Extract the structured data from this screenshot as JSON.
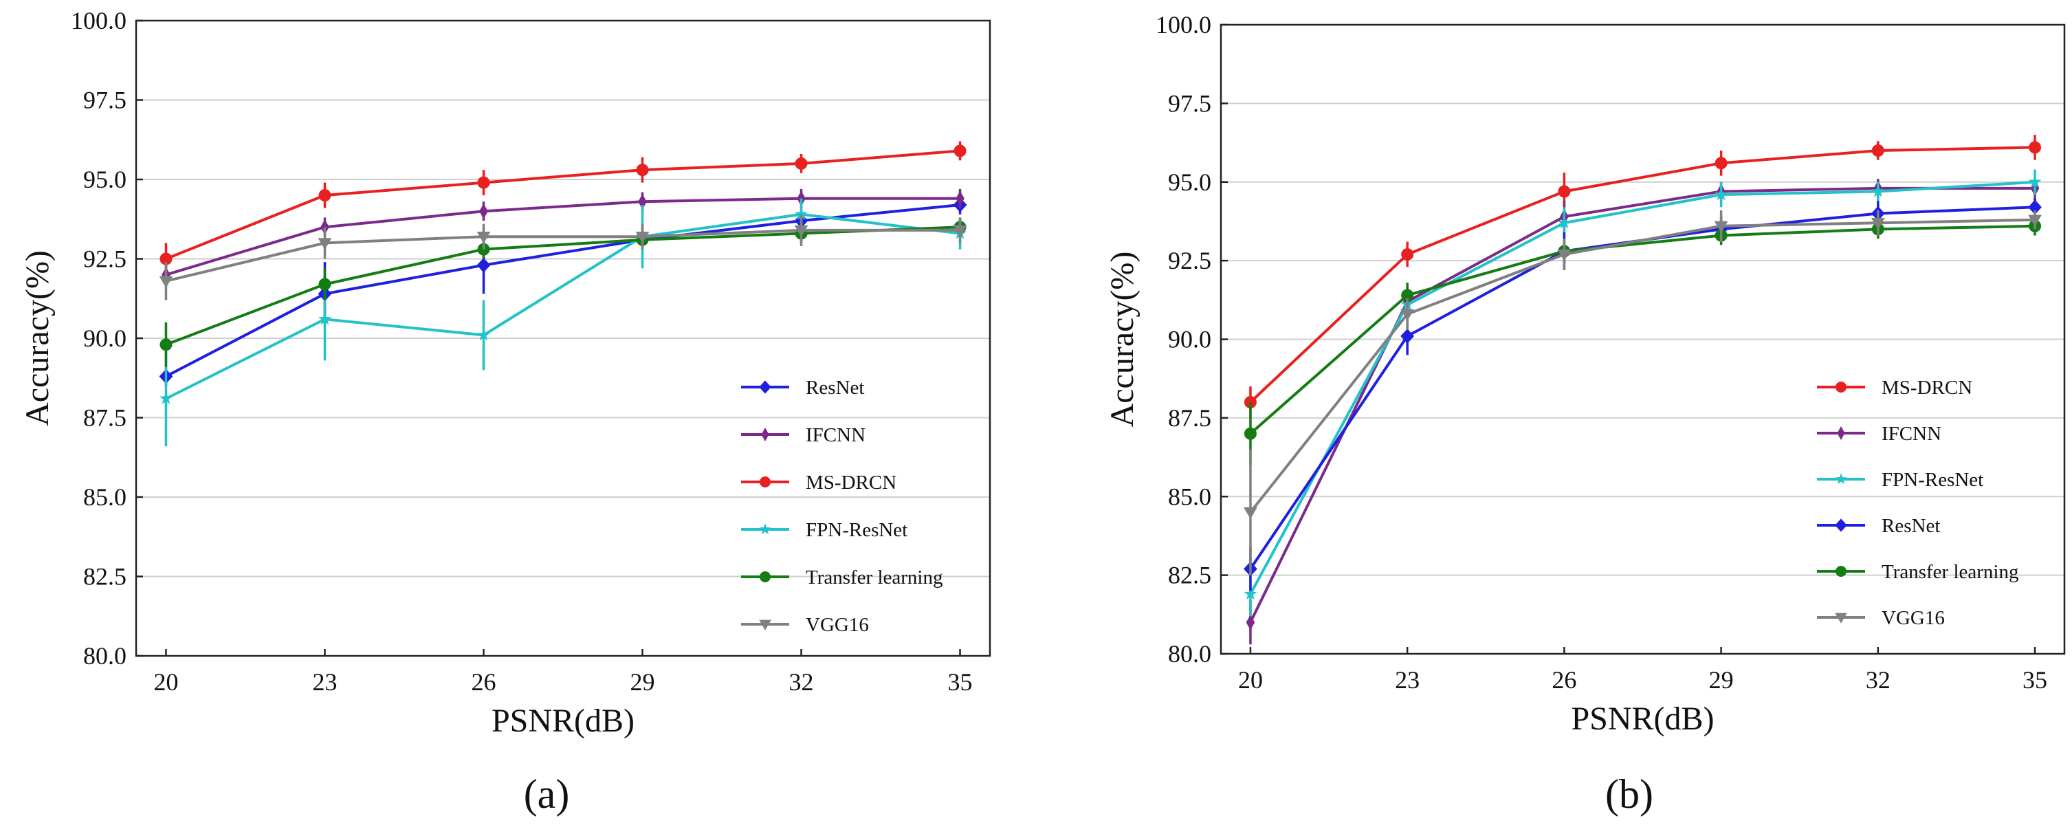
{
  "chart_data": [
    {
      "type": "line",
      "panel_label": "(a)",
      "xlabel": "PSNR(dB)",
      "ylabel": "Accuracy(%)",
      "x": [
        20,
        23,
        26,
        29,
        32,
        35
      ],
      "x_ticks": [
        "20",
        "23",
        "26",
        "29",
        "32",
        "35"
      ],
      "ylim": [
        80.0,
        100.0
      ],
      "y_ticks": [
        "80.0",
        "82.5",
        "85.0",
        "87.5",
        "90.0",
        "92.5",
        "95.0",
        "97.5",
        "100.0"
      ],
      "grid": "horizontal",
      "legend_position": "lower-right",
      "series": [
        {
          "name": "ResNet",
          "color": "#1f1fe0",
          "marker": "diamond",
          "values": [
            88.8,
            91.4,
            92.3,
            93.1,
            93.7,
            94.2
          ],
          "errors": [
            0.3,
            1.0,
            0.9,
            0.3,
            0.3,
            0.3
          ]
        },
        {
          "name": "IFCNN",
          "color": "#7b2a8c",
          "marker": "thin-diamond",
          "values": [
            92.0,
            93.5,
            94.0,
            94.3,
            94.4,
            94.4
          ],
          "errors": [
            0.3,
            0.3,
            0.3,
            0.3,
            0.3,
            0.3
          ]
        },
        {
          "name": "MS-DRCN",
          "color": "#e8201f",
          "marker": "circle",
          "values": [
            92.5,
            94.5,
            94.9,
            95.3,
            95.5,
            95.9
          ],
          "errors": [
            0.5,
            0.4,
            0.4,
            0.4,
            0.3,
            0.3
          ]
        },
        {
          "name": "FPN-ResNet",
          "color": "#22c2c8",
          "marker": "star",
          "values": [
            88.1,
            90.6,
            90.1,
            93.2,
            93.9,
            93.3
          ],
          "errors": [
            1.5,
            1.3,
            1.1,
            1.0,
            0.5,
            0.5
          ]
        },
        {
          "name": "Transfer learning",
          "color": "#137c13",
          "marker": "circle",
          "values": [
            89.8,
            91.7,
            92.8,
            93.1,
            93.3,
            93.5
          ],
          "errors": [
            0.7,
            0.5,
            0.3,
            0.2,
            0.3,
            0.3
          ]
        },
        {
          "name": "VGG16",
          "color": "#808080",
          "marker": "triangle-down",
          "values": [
            91.8,
            93.0,
            93.2,
            93.2,
            93.4,
            93.4
          ],
          "errors": [
            0.6,
            0.5,
            0.4,
            0.4,
            0.5,
            0.4
          ]
        }
      ]
    },
    {
      "type": "line",
      "panel_label": "(b)",
      "xlabel": "PSNR(dB)",
      "ylabel": "Accuracy(%)",
      "x": [
        20,
        23,
        26,
        29,
        32,
        35
      ],
      "x_ticks": [
        "20",
        "23",
        "26",
        "29",
        "32",
        "35"
      ],
      "ylim": [
        80.0,
        100.0
      ],
      "y_ticks": [
        "80.0",
        "82.5",
        "85.0",
        "87.5",
        "90.0",
        "92.5",
        "95.0",
        "97.5",
        "100.0"
      ],
      "grid": "horizontal",
      "legend_position": "lower-right",
      "series": [
        {
          "name": "MS-DRCN",
          "color": "#e8201f",
          "marker": "circle",
          "values": [
            88.0,
            92.7,
            94.7,
            95.6,
            96.0,
            96.1
          ],
          "errors": [
            0.5,
            0.4,
            0.6,
            0.4,
            0.3,
            0.4
          ]
        },
        {
          "name": "IFCNN",
          "color": "#7b2a8c",
          "marker": "thin-diamond",
          "values": [
            81.0,
            91.2,
            93.9,
            94.7,
            94.8,
            94.8
          ],
          "errors": [
            0.7,
            0.5,
            0.5,
            0.3,
            0.3,
            0.3
          ]
        },
        {
          "name": "FPN-ResNet",
          "color": "#22c2c8",
          "marker": "star",
          "values": [
            81.9,
            91.1,
            93.7,
            94.6,
            94.7,
            95.0
          ],
          "errors": [
            0.7,
            0.5,
            0.5,
            0.4,
            0.3,
            0.4
          ]
        },
        {
          "name": "ResNet",
          "color": "#1f1fe0",
          "marker": "diamond",
          "values": [
            82.7,
            90.1,
            92.8,
            93.5,
            94.0,
            94.2
          ],
          "errors": [
            0.7,
            0.6,
            0.6,
            0.4,
            0.4,
            0.3
          ]
        },
        {
          "name": "Transfer learning",
          "color": "#137c13",
          "marker": "circle",
          "values": [
            87.0,
            91.4,
            92.8,
            93.3,
            93.5,
            93.6
          ],
          "errors": [
            1.0,
            0.4,
            0.4,
            0.3,
            0.3,
            0.3
          ]
        },
        {
          "name": "VGG16",
          "color": "#808080",
          "marker": "triangle-down",
          "values": [
            84.5,
            90.8,
            92.7,
            93.6,
            93.7,
            93.8
          ],
          "errors": [
            2.0,
            0.5,
            0.5,
            0.5,
            0.4,
            0.3
          ]
        }
      ]
    }
  ]
}
